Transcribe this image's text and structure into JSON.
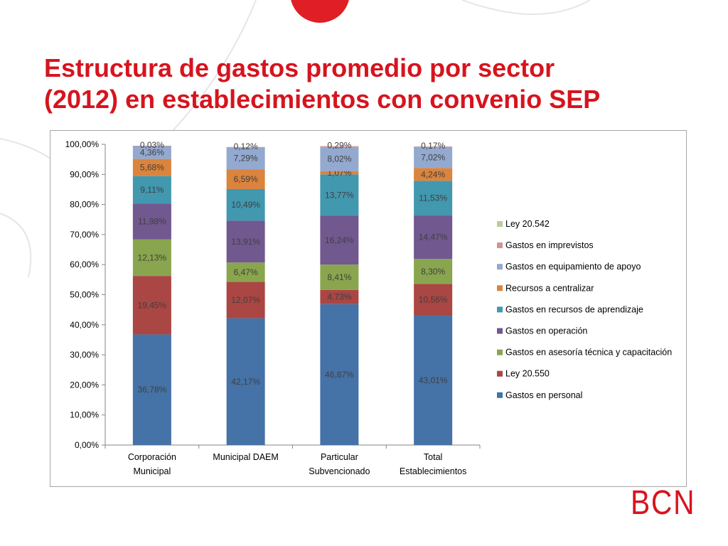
{
  "slide": {
    "title_line1": "Estructura de gastos promedio por sector",
    "title_line2": "(2012) en establecimientos con convenio SEP",
    "logo": "BCN"
  },
  "colors": {
    "title": "#d6141e",
    "logo": "#d6141e",
    "accent_circle": "#e01e25"
  },
  "chart_data": {
    "type": "bar",
    "stacked": true,
    "categories": [
      [
        "Corporación",
        "Municipal"
      ],
      [
        "Municipal DAEM"
      ],
      [
        "Particular",
        "Subvencionado"
      ],
      [
        "Total",
        "Establecimientos"
      ]
    ],
    "ylim": [
      0,
      100
    ],
    "yticks": [
      "0,00%",
      "10,00%",
      "20,00%",
      "30,00%",
      "40,00%",
      "50,00%",
      "60,00%",
      "70,00%",
      "80,00%",
      "90,00%",
      "100,00%"
    ],
    "grid": false,
    "legend_position": "right",
    "series": [
      {
        "name": "Gastos en personal",
        "color": "#4572a7",
        "values": [
          36.78,
          42.17,
          46.87,
          43.01
        ],
        "labels": [
          "36,78%",
          "42,17%",
          "46,87%",
          "43,01%"
        ]
      },
      {
        "name": "Ley 20.550",
        "color": "#aa4643",
        "values": [
          19.45,
          12.07,
          4.73,
          10.56
        ],
        "labels": [
          "19,45%",
          "12,07%",
          "4,73%",
          "10,56%"
        ]
      },
      {
        "name": "Gastos en asesoría técnica y capacitación",
        "color": "#89a54e",
        "values": [
          12.13,
          6.47,
          8.41,
          8.3
        ],
        "labels": [
          "12,13%",
          "6,47%",
          "8,41%",
          "8,30%"
        ]
      },
      {
        "name": "Gastos en operación",
        "color": "#71588f",
        "values": [
          11.98,
          13.91,
          16.24,
          14.47
        ],
        "labels": [
          "11,98%",
          "13,91%",
          "16,24%",
          "14,47%"
        ]
      },
      {
        "name": "Gastos en recursos de aprendizaje",
        "color": "#4198af",
        "values": [
          9.11,
          10.49,
          13.77,
          11.53
        ],
        "labels": [
          "9,11%",
          "10,49%",
          "13,77%",
          "11,53%"
        ]
      },
      {
        "name": "Recursos a centralizar",
        "color": "#db843d",
        "values": [
          5.68,
          6.59,
          1.07,
          4.24
        ],
        "labels": [
          "5,68%",
          "6,59%",
          "1,07%",
          "4,24%"
        ]
      },
      {
        "name": "Gastos en equipamiento de apoyo",
        "color": "#93a9cf",
        "values": [
          4.36,
          7.29,
          8.02,
          7.02
        ],
        "labels": [
          "4,36%",
          "7,29%",
          "8,02%",
          "7,02%"
        ]
      },
      {
        "name": "Gastos en imprevistos",
        "color": "#d19392",
        "values": [
          0.03,
          0.12,
          0.29,
          0.17
        ],
        "labels": [
          "0,03%",
          "0,12%",
          "0,29%",
          "0,17%"
        ]
      },
      {
        "name": "Ley 20.542",
        "color": "#b9cd96",
        "values": [
          0,
          0,
          0,
          0
        ],
        "labels": []
      }
    ]
  }
}
